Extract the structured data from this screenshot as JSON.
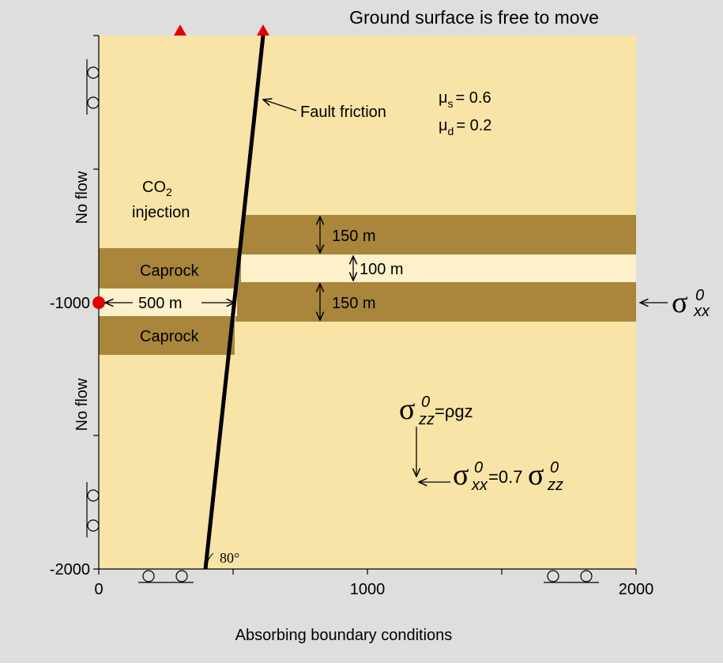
{
  "header": {
    "title": "Ground surface is free to move"
  },
  "footer": {
    "label": "Absorbing boundary conditions"
  },
  "axes": {
    "x_ticks": [
      "0",
      "1000",
      "2000"
    ],
    "y_ticks": [
      "-1000",
      "-2000"
    ]
  },
  "boundaries": {
    "left_top": "No flow",
    "left_bottom": "No flow"
  },
  "layers": {
    "caprock_upper": "Caprock",
    "caprock_lower": "Caprock",
    "reservoir_upper": "150 m",
    "gap": "100 m",
    "reservoir_lower": "150 m",
    "distance": "500 m"
  },
  "injection": {
    "label_main": "CO",
    "label_sub": "2",
    "label_line2": "injection"
  },
  "fault": {
    "label": "Fault friction",
    "angle": "80°",
    "mu_s": {
      "symbol": "μ",
      "sub": "s",
      "value": "= 0.6"
    },
    "mu_d": {
      "symbol": "μ",
      "sub": "d",
      "value": "= 0.2"
    }
  },
  "stress": {
    "boundary": {
      "symbol": "σ",
      "sup": "0",
      "sub": "xx"
    },
    "vertical": {
      "symbol": "σ",
      "sup": "0",
      "sub": "zz",
      "rhs": "=ρgz"
    },
    "horizontal": {
      "lhs": {
        "symbol": "σ",
        "sup": "0",
        "sub": "xx"
      },
      "mid": "=0.7",
      "rhs": {
        "symbol": "σ",
        "sup": "0",
        "sub": "zz"
      }
    }
  }
}
